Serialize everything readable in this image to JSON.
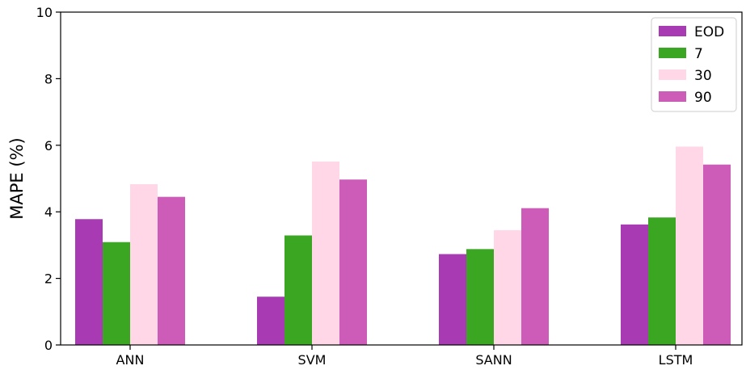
{
  "chart_data": {
    "type": "bar",
    "title": "",
    "xlabel": "",
    "ylabel": "MAPE (%)",
    "ylim": [
      0,
      10
    ],
    "yticks": [
      0,
      2,
      4,
      6,
      8,
      10
    ],
    "categories": [
      "ANN",
      "SVM",
      "SANN",
      "LSTM"
    ],
    "series": [
      {
        "name": "EOD",
        "color": "#a83bb3",
        "values": [
          3.78,
          1.45,
          2.73,
          3.62
        ]
      },
      {
        "name": "7",
        "color": "#3ba622",
        "values": [
          3.09,
          3.29,
          2.88,
          3.83
        ]
      },
      {
        "name": "30",
        "color": "#ffd7e6",
        "values": [
          4.83,
          5.51,
          3.45,
          5.96
        ]
      },
      {
        "name": "90",
        "color": "#cc5cb8",
        "values": [
          4.45,
          4.97,
          4.11,
          5.42
        ]
      }
    ],
    "legend_position": "top-right",
    "grid": false
  }
}
